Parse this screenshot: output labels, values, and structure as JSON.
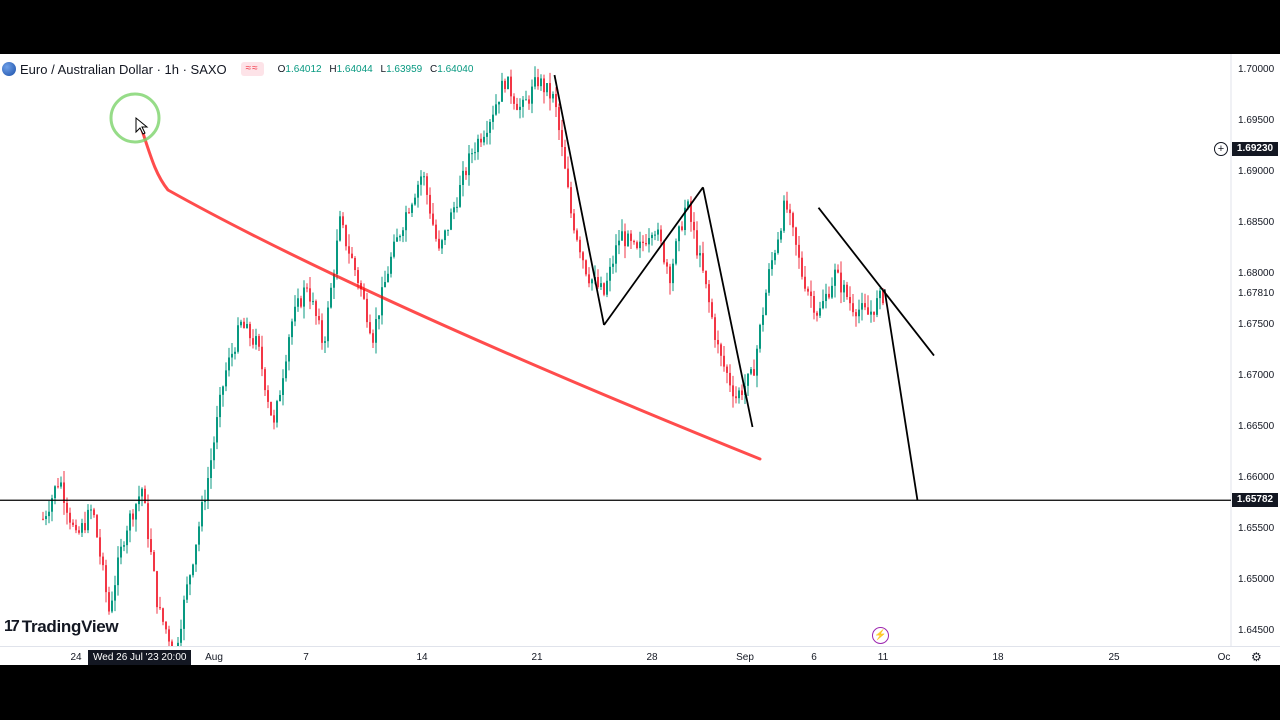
{
  "header": {
    "pair_title": "Euro / Australian Dollar · 1h · SAXO",
    "flags": "≈≈",
    "ohlc": {
      "o_label": "O",
      "o": "1.64012",
      "h_label": "H",
      "h": "1.64044",
      "l_label": "L",
      "l": "1.63959",
      "c_label": "C",
      "c": "1.64040"
    }
  },
  "brand": {
    "logo_mark": "17",
    "name": "TradingView"
  },
  "crosshair_date": "Wed 26 Jul '23   20:00",
  "colors": {
    "up": "#089981",
    "down": "#f23645",
    "annotation": "#ff0000",
    "trendline": "#000000",
    "cursor_ring": "#7cd36a"
  },
  "icons": {
    "symbol": "flag-globe-icon",
    "add": "plus-circle-icon",
    "bolt": "lightning-icon",
    "settings": "gear-icon"
  },
  "chart_data": {
    "type": "candlestick",
    "title": "Euro / Australian Dollar · 1h · SAXO",
    "price_axis": {
      "ticks": [
        "1.70000",
        "1.69500",
        "1.69000",
        "1.68500",
        "1.68000",
        "1.67500",
        "1.67000",
        "1.66500",
        "1.66000",
        "1.65500",
        "1.65000",
        "1.64500"
      ],
      "range": [
        1.6425,
        1.7015
      ]
    },
    "time_axis": {
      "ticks": [
        "24",
        "Aug",
        "7",
        "14",
        "21",
        "28",
        "Sep",
        "6",
        "11",
        "18",
        "25",
        "Oc"
      ]
    },
    "marked_prices": {
      "crosshair": "1.69230",
      "level_line": "1.65782",
      "last": "1.67810"
    },
    "series_outline": [
      {
        "t": "Jul 22",
        "p": 1.656
      },
      {
        "t": "Jul 23",
        "p": 1.66
      },
      {
        "t": "Jul 24",
        "p": 1.654
      },
      {
        "t": "Jul 25",
        "p": 1.657
      },
      {
        "t": "Jul 26",
        "p": 1.647
      },
      {
        "t": "Jul 27",
        "p": 1.655
      },
      {
        "t": "Jul 28",
        "p": 1.659
      },
      {
        "t": "Jul 29",
        "p": 1.647
      },
      {
        "t": "Jul 30",
        "p": 1.643
      },
      {
        "t": "Aug 1",
        "p": 1.66
      },
      {
        "t": "Aug 2",
        "p": 1.67
      },
      {
        "t": "Aug 3",
        "p": 1.675
      },
      {
        "t": "Aug 4",
        "p": 1.673
      },
      {
        "t": "Aug 5",
        "p": 1.665
      },
      {
        "t": "Aug 6",
        "p": 1.675
      },
      {
        "t": "Aug 7",
        "p": 1.679
      },
      {
        "t": "Aug 8",
        "p": 1.673
      },
      {
        "t": "Aug 9",
        "p": 1.685
      },
      {
        "t": "Aug 10",
        "p": 1.68
      },
      {
        "t": "Aug 11",
        "p": 1.674
      },
      {
        "t": "Aug 12",
        "p": 1.681
      },
      {
        "t": "Aug 13",
        "p": 1.686
      },
      {
        "t": "Aug 14",
        "p": 1.69
      },
      {
        "t": "Aug 15",
        "p": 1.682
      },
      {
        "t": "Aug 16",
        "p": 1.687
      },
      {
        "t": "Aug 17",
        "p": 1.692
      },
      {
        "t": "Aug 18",
        "p": 1.695
      },
      {
        "t": "Aug 19",
        "p": 1.699
      },
      {
        "t": "Aug 20",
        "p": 1.696
      },
      {
        "t": "Aug 21",
        "p": 1.699
      },
      {
        "t": "Aug 22",
        "p": 1.697
      },
      {
        "t": "Aug 23",
        "p": 1.686
      },
      {
        "t": "Aug 24",
        "p": 1.68
      },
      {
        "t": "Aug 25",
        "p": 1.678
      },
      {
        "t": "Aug 26",
        "p": 1.684
      },
      {
        "t": "Aug 27",
        "p": 1.682
      },
      {
        "t": "Aug 28",
        "p": 1.685
      },
      {
        "t": "Aug 29",
        "p": 1.68
      },
      {
        "t": "Aug 30",
        "p": 1.687
      },
      {
        "t": "Aug 31",
        "p": 1.68
      },
      {
        "t": "Sep 1",
        "p": 1.672
      },
      {
        "t": "Sep 2",
        "p": 1.668
      },
      {
        "t": "Sep 3",
        "p": 1.67
      },
      {
        "t": "Sep 4",
        "p": 1.68
      },
      {
        "t": "Sep 5",
        "p": 1.687
      },
      {
        "t": "Sep 6",
        "p": 1.68
      },
      {
        "t": "Sep 7",
        "p": 1.676
      },
      {
        "t": "Sep 8",
        "p": 1.68
      },
      {
        "t": "Sep 9",
        "p": 1.677
      },
      {
        "t": "Sep 10",
        "p": 1.676
      },
      {
        "t": "Sep 11",
        "p": 1.6781
      }
    ],
    "trendlines": [
      {
        "from": {
          "t": "Aug 22",
          "p": 1.6995
        },
        "to": {
          "t": "Aug 25",
          "p": 1.675
        }
      },
      {
        "from": {
          "t": "Aug 25",
          "p": 1.675
        },
        "to": {
          "t": "Aug 31",
          "p": 1.6885
        }
      },
      {
        "from": {
          "t": "Aug 31",
          "p": 1.6885
        },
        "to": {
          "t": "Sep 3",
          "p": 1.665
        }
      },
      {
        "from": {
          "t": "Sep 7",
          "p": 1.6865
        },
        "to": {
          "t": "Sep 14",
          "p": 1.672
        }
      },
      {
        "from": {
          "t": "Sep 11",
          "p": 1.6785
        },
        "to": {
          "t": "Sep 13",
          "p": 1.6578
        }
      }
    ]
  }
}
